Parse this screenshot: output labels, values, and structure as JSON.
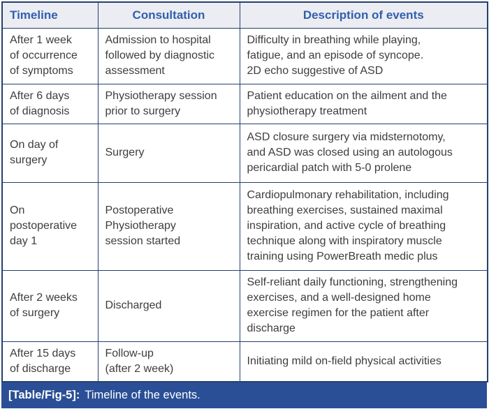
{
  "figure": {
    "caption_label": "[Table/Fig-5]:",
    "caption_text": "Timeline of the events."
  },
  "colors": {
    "border_navy": "#24406c",
    "header_background": "#ececf3",
    "header_text_blue": "#3060ac",
    "body_text": "#3d3d3d",
    "caption_background": "#2a4f96",
    "caption_text": "#ffffff"
  },
  "table": {
    "columns": [
      "Timeline",
      "Consultation",
      "Description of events"
    ],
    "rows": [
      {
        "timeline": "After 1 week\nof occurrence\nof symptoms",
        "consultation": "Admission to hospital\nfollowed by diagnostic\nassessment",
        "description": "Difficulty in breathing while playing,\nfatigue, and an episode of syncope.\n2D echo suggestive of ASD"
      },
      {
        "timeline": "After 6 days\nof diagnosis",
        "consultation": "Physiotherapy session\nprior to surgery",
        "description": "Patient education on the ailment and the\nphysiotherapy treatment"
      },
      {
        "timeline": "On day of\nsurgery",
        "consultation": "Surgery",
        "description": "ASD closure surgery via midsternotomy,\nand ASD was closed using an autologous\npericardial patch with 5-0 prolene"
      },
      {
        "timeline": "On\npostoperative\nday 1",
        "consultation": "Postoperative\nPhysiotherapy\nsession started",
        "description": "Cardiopulmonary rehabilitation, including\nbreathing exercises, sustained maximal\ninspiration, and active cycle of breathing\ntechnique along with inspiratory muscle\ntraining using PowerBreath medic plus"
      },
      {
        "timeline": "After 2 weeks\nof surgery",
        "consultation": "Discharged",
        "description": "Self-reliant daily functioning, strengthening\nexercises, and a well-designed home\nexercise regimen for the patient after\ndischarge"
      },
      {
        "timeline": "After 15 days\nof discharge",
        "consultation": "Follow-up\n(after 2 week)",
        "description": "Initiating mild on-field physical activities"
      }
    ]
  }
}
